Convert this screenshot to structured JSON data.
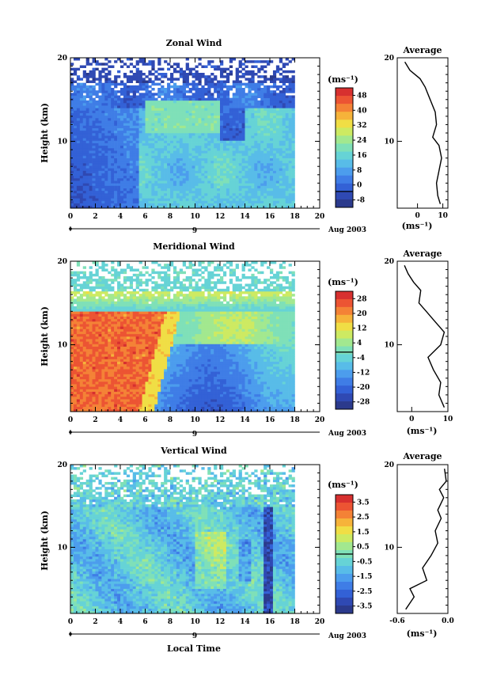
{
  "chart_data": [
    {
      "type": "heatmap",
      "title": "Zonal Wind",
      "ylabel": "Height (km)",
      "xlim": [
        0,
        20
      ],
      "ylim": [
        2,
        20
      ],
      "x_ticks": [
        "0",
        "2",
        "4",
        "6",
        "8",
        "10",
        "12",
        "14",
        "16",
        "18",
        "20"
      ],
      "y_ticks": [
        "20",
        "10"
      ],
      "date_label": "Aug 2003",
      "day_label": "9",
      "colorbar": {
        "unit_label": "(ms⁻¹)",
        "tick_labels": [
          "48",
          "40",
          "32",
          "24",
          "16",
          "8",
          "0",
          "-8"
        ],
        "range": [
          -8,
          52
        ],
        "zero_line": 0
      },
      "average_profile": {
        "title": "Average",
        "xlabel": "(ms⁻¹)",
        "x_ticks": [
          "0",
          "10"
        ],
        "xlim": [
          -8,
          12
        ],
        "y_ticks": [
          "20",
          "10"
        ],
        "points": [
          [
            9,
            2.5
          ],
          [
            8,
            3.5
          ],
          [
            7.5,
            5
          ],
          [
            8.5,
            6.5
          ],
          [
            9.5,
            8
          ],
          [
            8.5,
            9.5
          ],
          [
            6,
            10.5
          ],
          [
            7.5,
            12
          ],
          [
            7,
            13.5
          ],
          [
            5,
            15
          ],
          [
            3,
            16.5
          ],
          [
            1,
            17.5
          ],
          [
            -3,
            18.5
          ],
          [
            -5,
            19.5
          ]
        ]
      }
    },
    {
      "type": "heatmap",
      "title": "Meridional Wind",
      "ylabel": "Height (km)",
      "xlim": [
        0,
        20
      ],
      "ylim": [
        2,
        20
      ],
      "x_ticks": [
        "0",
        "2",
        "4",
        "6",
        "8",
        "10",
        "12",
        "14",
        "16",
        "18",
        "20"
      ],
      "y_ticks": [
        "20",
        "10"
      ],
      "date_label": "Aug 2003",
      "day_label": "9",
      "colorbar": {
        "unit_label": "(ms⁻¹)",
        "tick_labels": [
          "28",
          "20",
          "12",
          "4",
          "-4",
          "-12",
          "-20",
          "-28"
        ],
        "range": [
          -30,
          32
        ],
        "zero_line": 0
      },
      "average_profile": {
        "title": "Average",
        "xlabel": "(ms⁻¹)",
        "x_ticks": [
          "0",
          "10"
        ],
        "xlim": [
          -4,
          10
        ],
        "y_ticks": [
          "20",
          "10"
        ],
        "points": [
          [
            9,
            2.5
          ],
          [
            7.5,
            4
          ],
          [
            8,
            5.5
          ],
          [
            6,
            7
          ],
          [
            4.5,
            8.5
          ],
          [
            8,
            10
          ],
          [
            9,
            11.5
          ],
          [
            6,
            13
          ],
          [
            4,
            14
          ],
          [
            2,
            15
          ],
          [
            2.5,
            16.5
          ],
          [
            0.5,
            17.5
          ],
          [
            -1,
            18.5
          ],
          [
            -2,
            19.5
          ]
        ]
      }
    },
    {
      "type": "heatmap",
      "title": "Vertical Wind",
      "ylabel": "Height (km)",
      "xlabel": "Local Time",
      "xlim": [
        0,
        20
      ],
      "ylim": [
        2,
        20
      ],
      "x_ticks": [
        "0",
        "2",
        "4",
        "6",
        "8",
        "10",
        "12",
        "14",
        "16",
        "18",
        "20"
      ],
      "y_ticks": [
        "20",
        "10"
      ],
      "date_label": "Aug 2003",
      "day_label": "9",
      "colorbar": {
        "unit_label": "(ms⁻¹)",
        "tick_labels": [
          "3.5",
          "2.5",
          "1.5",
          "0.5",
          "-0.5",
          "-1.5",
          "-2.5",
          "-3.5"
        ],
        "range": [
          -4,
          4
        ],
        "zero_line": 0
      },
      "average_profile": {
        "title": "Average",
        "xlabel": "(ms⁻¹)",
        "x_ticks": [
          "-0.6",
          "0.0"
        ],
        "xlim": [
          -0.6,
          0.0
        ],
        "y_ticks": [
          "20",
          "10"
        ],
        "points": [
          [
            -0.5,
            2.5
          ],
          [
            -0.4,
            4
          ],
          [
            -0.45,
            5
          ],
          [
            -0.25,
            6
          ],
          [
            -0.3,
            7.5
          ],
          [
            -0.2,
            9
          ],
          [
            -0.12,
            10.5
          ],
          [
            -0.15,
            12
          ],
          [
            -0.08,
            13.5
          ],
          [
            -0.12,
            14.5
          ],
          [
            -0.05,
            16
          ],
          [
            -0.1,
            17
          ],
          [
            -0.02,
            18
          ],
          [
            -0.04,
            19.5
          ]
        ]
      }
    }
  ]
}
